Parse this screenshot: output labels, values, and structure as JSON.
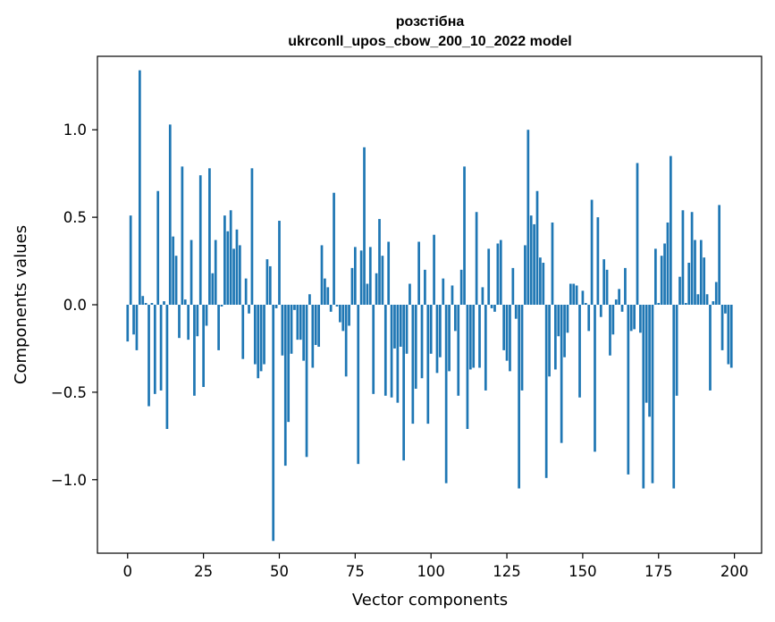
{
  "chart_data": {
    "type": "bar",
    "title": "розстібна",
    "subtitle": "ukrconll_upos_cbow_200_10_2022 model",
    "xlabel": "Vector components",
    "ylabel": "Components values",
    "xlim": [
      -9.95,
      208.95
    ],
    "ylim": [
      -1.42,
      1.42
    ],
    "xticks": [
      0,
      25,
      50,
      75,
      100,
      125,
      150,
      175,
      200
    ],
    "yticks": [
      -1.0,
      -0.5,
      0.0,
      0.5,
      1.0
    ],
    "ytick_labels": [
      "−1.0",
      "−0.5",
      "0.0",
      "0.5",
      "1.0"
    ],
    "grid": false,
    "color": "#1f77b4",
    "x_start": 0,
    "values": [
      -0.21,
      0.51,
      -0.17,
      -0.26,
      1.34,
      0.05,
      0.01,
      -0.58,
      0.01,
      -0.51,
      0.65,
      -0.49,
      0.02,
      -0.71,
      1.03,
      0.39,
      0.28,
      -0.19,
      0.79,
      0.03,
      -0.2,
      0.37,
      -0.52,
      -0.18,
      0.74,
      -0.47,
      -0.12,
      0.78,
      0.18,
      0.37,
      -0.26,
      -0.01,
      0.51,
      0.42,
      0.54,
      0.32,
      0.43,
      0.34,
      -0.31,
      0.15,
      -0.05,
      0.78,
      -0.34,
      -0.42,
      -0.38,
      -0.34,
      0.26,
      0.22,
      -1.35,
      -0.02,
      0.48,
      -0.29,
      -0.92,
      -0.67,
      -0.28,
      -0.03,
      -0.2,
      -0.2,
      -0.32,
      -0.87,
      0.06,
      -0.36,
      -0.23,
      -0.24,
      0.34,
      0.15,
      0.1,
      -0.04,
      0.64,
      -0.01,
      -0.1,
      -0.15,
      -0.41,
      -0.12,
      0.21,
      0.33,
      -0.91,
      0.31,
      0.9,
      0.12,
      0.33,
      -0.51,
      0.18,
      0.49,
      0.28,
      -0.52,
      0.36,
      -0.53,
      -0.25,
      -0.56,
      -0.24,
      -0.89,
      -0.28,
      0.12,
      -0.68,
      -0.48,
      0.36,
      -0.42,
      0.2,
      -0.68,
      -0.28,
      0.4,
      -0.39,
      -0.3,
      0.15,
      -1.02,
      -0.38,
      0.11,
      -0.15,
      -0.52,
      0.2,
      0.79,
      -0.71,
      -0.37,
      -0.36,
      0.53,
      -0.36,
      0.1,
      -0.49,
      0.32,
      -0.02,
      -0.04,
      0.35,
      0.37,
      -0.26,
      -0.32,
      -0.38,
      0.21,
      -0.08,
      -1.05,
      -0.49,
      0.34,
      1.0,
      0.51,
      0.46,
      0.65,
      0.27,
      0.24,
      -0.99,
      -0.41,
      0.47,
      -0.37,
      -0.18,
      -0.79,
      -0.3,
      -0.16,
      0.12,
      0.12,
      0.11,
      -0.53,
      0.08,
      0.01,
      -0.15,
      0.6,
      -0.84,
      0.5,
      -0.07,
      0.26,
      0.2,
      -0.29,
      -0.17,
      0.03,
      0.09,
      -0.04,
      0.21,
      -0.97,
      -0.15,
      -0.14,
      0.81,
      -0.16,
      -1.05,
      -0.56,
      -0.64,
      -1.02,
      0.32,
      0.01,
      0.28,
      0.35,
      0.47,
      0.85,
      -1.05,
      -0.52,
      0.16,
      0.54,
      0.01,
      0.24,
      0.53,
      0.37,
      0.06,
      0.37,
      0.27,
      0.06,
      -0.49,
      0.02,
      0.13,
      0.57,
      -0.26,
      -0.05,
      -0.34,
      -0.36
    ]
  }
}
